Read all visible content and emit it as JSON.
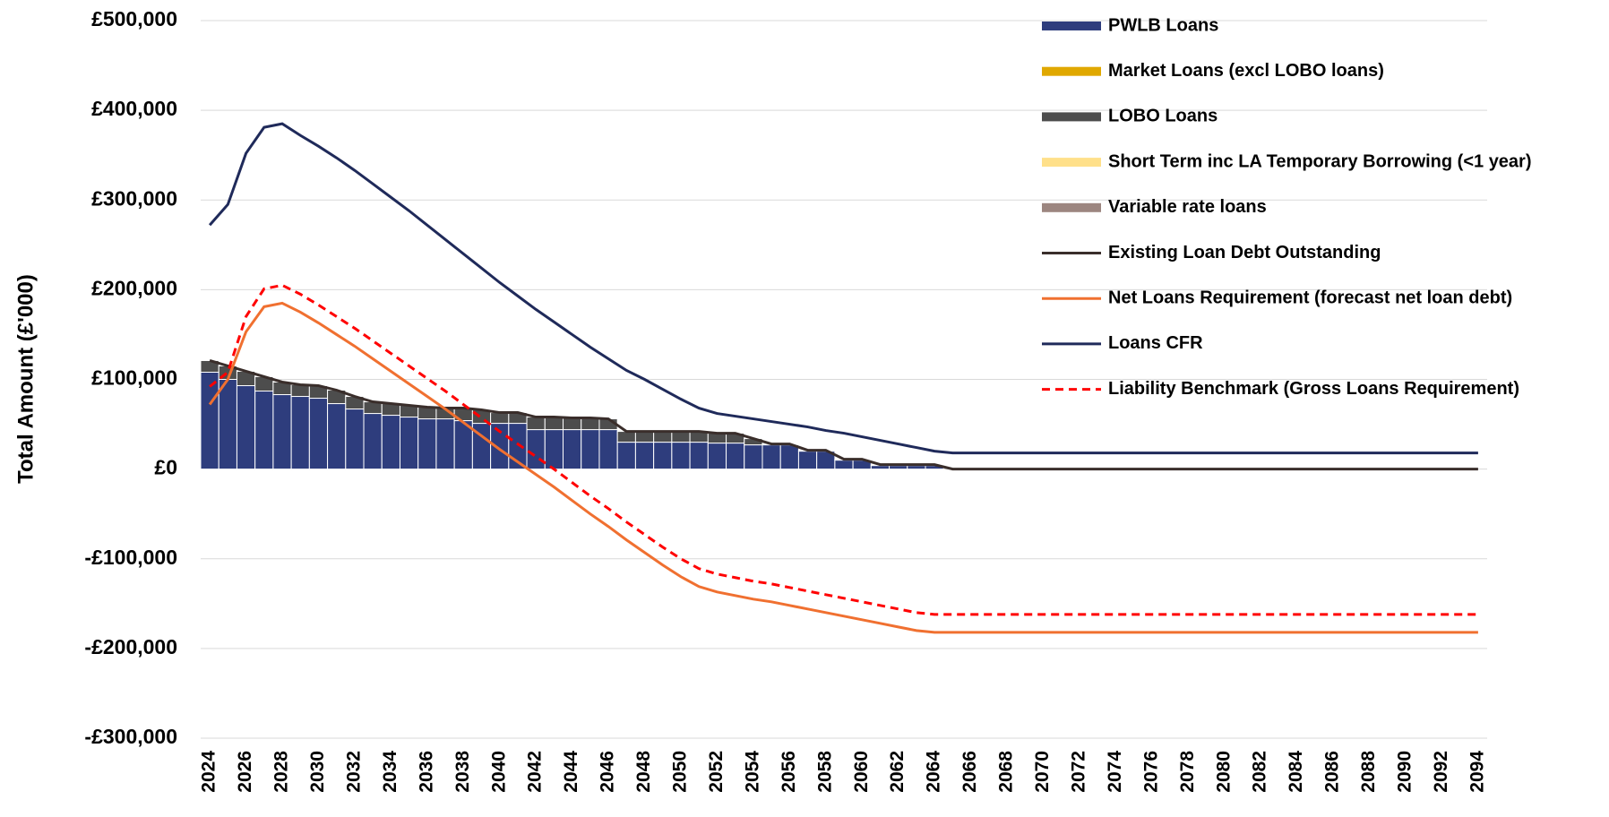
{
  "chart_data": {
    "type": "combo",
    "y_label": "Total Amount (£'000)",
    "ylim": [
      -300000,
      500000
    ],
    "yticks": [
      {
        "value": -300000,
        "label": "-£300,000"
      },
      {
        "value": -200000,
        "label": "-£200,000"
      },
      {
        "value": -100000,
        "label": "-£100,000"
      },
      {
        "value": 0,
        "label": "£0"
      },
      {
        "value": 100000,
        "label": "£100,000"
      },
      {
        "value": 200000,
        "label": "£200,000"
      },
      {
        "value": 300000,
        "label": "£300,000"
      },
      {
        "value": 400000,
        "label": "£400,000"
      },
      {
        "value": 500000,
        "label": "£500,000"
      }
    ],
    "grid": true,
    "legend": "right",
    "categories": [
      "2024",
      null,
      "2026",
      null,
      "2028",
      null,
      "2030",
      null,
      "2032",
      null,
      "2034",
      null,
      "2036",
      null,
      "2038",
      null,
      "2040",
      null,
      "2042",
      null,
      "2044",
      null,
      "2046",
      null,
      "2048",
      null,
      "2050",
      null,
      "2052",
      null,
      "2054",
      null,
      "2056",
      null,
      "2058",
      null,
      "2060",
      null,
      "2062",
      null,
      "2064",
      null,
      "2066",
      null,
      "2068",
      null,
      "2070",
      null,
      "2072",
      null,
      "2074",
      null,
      "2076",
      null,
      "2078",
      null,
      "2080",
      null,
      "2082",
      null,
      "2084",
      null,
      "2086",
      null,
      "2088",
      null,
      "2090",
      null,
      "2092",
      null,
      "2094"
    ],
    "series": [
      {
        "name": "PWLB Loans",
        "type": "bar",
        "color": "#2e3d7d",
        "values": [
          108000,
          100000,
          93000,
          87000,
          83000,
          81000,
          79000,
          73000,
          67000,
          62000,
          60000,
          58000,
          56000,
          56000,
          54000,
          51000,
          51000,
          51000,
          44000,
          44000,
          44000,
          44000,
          44000,
          30000,
          30000,
          30000,
          30000,
          30000,
          29000,
          29000,
          27000,
          27000,
          27000,
          20000,
          20000,
          10000,
          10000,
          4000,
          4000,
          4000,
          4000,
          0,
          0,
          0,
          0,
          0,
          0,
          0,
          0,
          0,
          0,
          0,
          0,
          0,
          0,
          0,
          0,
          0,
          0,
          0,
          0,
          0,
          0,
          0,
          0,
          0,
          0,
          0,
          0,
          0,
          0
        ]
      },
      {
        "name": "Market Loans (excl LOBO loans)",
        "type": "bar",
        "color": "#e0a800",
        "values": [
          0,
          0,
          0,
          0,
          0,
          0,
          0,
          0,
          0,
          0,
          0,
          0,
          0,
          0,
          0,
          0,
          0,
          0,
          0,
          0,
          0,
          0,
          0,
          0,
          0,
          0,
          0,
          0,
          0,
          0,
          0,
          0,
          0,
          0,
          0,
          0,
          0,
          0,
          0,
          0,
          0,
          0,
          0,
          0,
          0,
          0,
          0,
          0,
          0,
          0,
          0,
          0,
          0,
          0,
          0,
          0,
          0,
          0,
          0,
          0,
          0,
          0,
          0,
          0,
          0,
          0,
          0,
          0,
          0,
          0,
          0
        ]
      },
      {
        "name": "LOBO Loans",
        "type": "bar",
        "color": "#4d4d4d",
        "values": [
          13000,
          15000,
          16000,
          16000,
          14000,
          13000,
          14000,
          15000,
          14000,
          13000,
          13000,
          13000,
          13000,
          12000,
          14000,
          15000,
          12000,
          12000,
          14000,
          14000,
          13000,
          13000,
          12000,
          12000,
          12000,
          12000,
          12000,
          12000,
          11000,
          11000,
          7000,
          1000,
          1000,
          1000,
          1000,
          1000,
          1000,
          1000,
          1000,
          1000,
          1000,
          0,
          0,
          0,
          0,
          0,
          0,
          0,
          0,
          0,
          0,
          0,
          0,
          0,
          0,
          0,
          0,
          0,
          0,
          0,
          0,
          0,
          0,
          0,
          0,
          0,
          0,
          0,
          0,
          0,
          0
        ]
      },
      {
        "name": "Short Term inc LA Temporary Borrowing (<1 year)",
        "type": "bar",
        "color": "#ffe08a",
        "values": [
          0,
          0,
          0,
          0,
          0,
          0,
          0,
          0,
          0,
          0,
          0,
          0,
          0,
          0,
          0,
          0,
          0,
          0,
          0,
          0,
          0,
          0,
          0,
          0,
          0,
          0,
          0,
          0,
          0,
          0,
          0,
          0,
          0,
          0,
          0,
          0,
          0,
          0,
          0,
          0,
          0,
          0,
          0,
          0,
          0,
          0,
          0,
          0,
          0,
          0,
          0,
          0,
          0,
          0,
          0,
          0,
          0,
          0,
          0,
          0,
          0,
          0,
          0,
          0,
          0,
          0,
          0,
          0,
          0,
          0,
          0
        ]
      },
      {
        "name": "Variable rate loans",
        "type": "bar",
        "color": "#9c8680",
        "values": [
          0,
          0,
          0,
          0,
          0,
          0,
          0,
          0,
          0,
          0,
          0,
          0,
          0,
          0,
          0,
          0,
          0,
          0,
          0,
          0,
          0,
          0,
          0,
          0,
          0,
          0,
          0,
          0,
          0,
          0,
          0,
          0,
          0,
          0,
          0,
          0,
          0,
          0,
          0,
          0,
          0,
          0,
          0,
          0,
          0,
          0,
          0,
          0,
          0,
          0,
          0,
          0,
          0,
          0,
          0,
          0,
          0,
          0,
          0,
          0,
          0,
          0,
          0,
          0,
          0,
          0,
          0,
          0,
          0,
          0,
          0
        ]
      },
      {
        "name": "Existing Loan Debt Outstanding",
        "type": "line",
        "color": "#3a2e2b",
        "values": [
          121000,
          115000,
          109000,
          103000,
          97000,
          94000,
          93000,
          88000,
          81000,
          75000,
          73000,
          71000,
          69000,
          68000,
          68000,
          66000,
          63000,
          63000,
          58000,
          58000,
          57000,
          57000,
          56000,
          42000,
          42000,
          42000,
          42000,
          42000,
          40000,
          40000,
          34000,
          28000,
          28000,
          21000,
          21000,
          11000,
          11000,
          5000,
          5000,
          5000,
          5000,
          0,
          0,
          0,
          0,
          0,
          0,
          0,
          0,
          0,
          0,
          0,
          0,
          0,
          0,
          0,
          0,
          0,
          0,
          0,
          0,
          0,
          0,
          0,
          0,
          0,
          0,
          0,
          0,
          0,
          0
        ]
      },
      {
        "name": "Net Loans Requirement (forecast net loan debt)",
        "type": "line",
        "color": "#f07030",
        "values": [
          72000,
          100000,
          153000,
          181000,
          185000,
          175000,
          163000,
          150000,
          137000,
          123000,
          109000,
          95000,
          81000,
          67000,
          52000,
          37000,
          22000,
          8000,
          -6000,
          -20000,
          -35000,
          -50000,
          -64000,
          -79000,
          -93000,
          -107000,
          -120000,
          -131000,
          -137000,
          -141000,
          -145000,
          -148000,
          -152000,
          -156000,
          -160000,
          -164000,
          -168000,
          -172000,
          -176000,
          -180000,
          -182000,
          -182000,
          -182000,
          -182000,
          -182000,
          -182000,
          -182000,
          -182000,
          -182000,
          -182000,
          -182000,
          -182000,
          -182000,
          -182000,
          -182000,
          -182000,
          -182000,
          -182000,
          -182000,
          -182000,
          -182000,
          -182000,
          -182000,
          -182000,
          -182000,
          -182000,
          -182000,
          -182000,
          -182000,
          -182000,
          -182000
        ]
      },
      {
        "name": "Loans CFR",
        "type": "line",
        "color": "#1f2a5a",
        "values": [
          272000,
          295000,
          352000,
          381000,
          385000,
          372000,
          360000,
          347000,
          333000,
          318000,
          303000,
          288000,
          272000,
          256000,
          240000,
          224000,
          208000,
          193000,
          178000,
          164000,
          150000,
          136000,
          123000,
          110000,
          100000,
          89000,
          78000,
          68000,
          62000,
          59000,
          56000,
          53000,
          50000,
          47000,
          43000,
          40000,
          36000,
          32000,
          28000,
          24000,
          20000,
          18000,
          18000,
          18000,
          18000,
          18000,
          18000,
          18000,
          18000,
          18000,
          18000,
          18000,
          18000,
          18000,
          18000,
          18000,
          18000,
          18000,
          18000,
          18000,
          18000,
          18000,
          18000,
          18000,
          18000,
          18000,
          18000,
          18000,
          18000,
          18000,
          18000
        ]
      },
      {
        "name": "Liability Benchmark (Gross Loans Requirement)",
        "type": "line",
        "dashed": true,
        "color": "#ff0000",
        "values": [
          92000,
          108000,
          170000,
          201000,
          205000,
          195000,
          183000,
          170000,
          157000,
          143000,
          129000,
          115000,
          101000,
          87000,
          72000,
          57000,
          42000,
          28000,
          14000,
          0,
          -15000,
          -30000,
          -44000,
          -59000,
          -73000,
          -87000,
          -100000,
          -111000,
          -117000,
          -121000,
          -125000,
          -128000,
          -132000,
          -136000,
          -140000,
          -144000,
          -148000,
          -152000,
          -156000,
          -160000,
          -162000,
          -162000,
          -162000,
          -162000,
          -162000,
          -162000,
          -162000,
          -162000,
          -162000,
          -162000,
          -162000,
          -162000,
          -162000,
          -162000,
          -162000,
          -162000,
          -162000,
          -162000,
          -162000,
          -162000,
          -162000,
          -162000,
          -162000,
          -162000,
          -162000,
          -162000,
          -162000,
          -162000,
          -162000,
          -162000,
          -162000
        ]
      }
    ]
  }
}
